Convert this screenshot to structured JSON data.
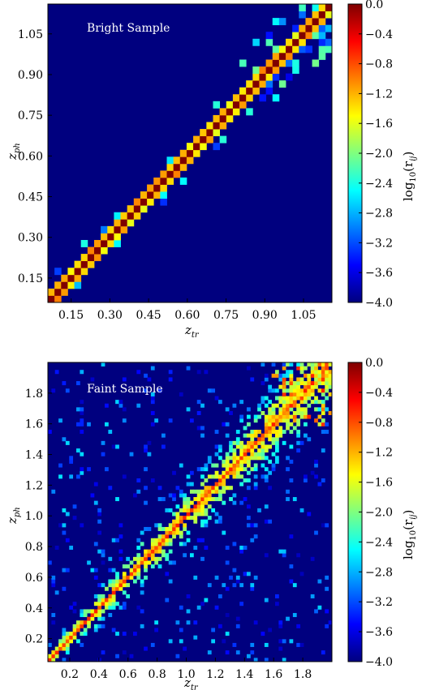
{
  "colormap": {
    "stops": [
      "#00007f",
      "#0000ff",
      "#007fff",
      "#00ffff",
      "#7fff7f",
      "#ffff00",
      "#ff7f00",
      "#ff0000",
      "#7f0000"
    ],
    "cbar_ticks": [
      "0.0",
      "−0.4",
      "−0.8",
      "−1.2",
      "−1.6",
      "−2.0",
      "−2.4",
      "−2.8",
      "−3.2",
      "−3.6",
      "−4.0"
    ],
    "cbar_label_main": "log",
    "cbar_label_sub": "10",
    "cbar_label_rest": "(r",
    "cbar_label_idx": "ij",
    "cbar_label_close": ")",
    "range": [
      -4.0,
      0.0
    ]
  },
  "chart_data": [
    {
      "type": "heatmap",
      "title": "Bright Sample",
      "xlabel_main": "z",
      "xlabel_sub": "tr",
      "ylabel_main": "z",
      "ylabel_sub": "ph",
      "xlim": [
        0.06,
        1.16
      ],
      "ylim": [
        0.06,
        1.16
      ],
      "bins": 43,
      "xticks": [
        "0.15",
        "0.30",
        "0.45",
        "0.60",
        "0.75",
        "0.90",
        "1.05"
      ],
      "yticks": [
        "0.15",
        "0.30",
        "0.45",
        "0.60",
        "0.75",
        "0.90",
        "1.05"
      ],
      "diagonal_value": 0.0,
      "near_diagonal_value": -1.3,
      "background_value": -4.0
    },
    {
      "type": "heatmap",
      "title": "Faint Sample",
      "xlabel_main": "z",
      "xlabel_sub": "tr",
      "ylabel_main": "z",
      "ylabel_sub": "ph",
      "xlim": [
        0.05,
        2.0
      ],
      "ylim": [
        0.05,
        2.0
      ],
      "bins": 80,
      "xticks": [
        "0.2",
        "0.4",
        "0.6",
        "0.8",
        "1.0",
        "1.2",
        "1.4",
        "1.6",
        "1.8"
      ],
      "yticks": [
        "0.2",
        "0.4",
        "0.6",
        "0.8",
        "1.0",
        "1.2",
        "1.4",
        "1.6",
        "1.8"
      ],
      "diagonal_value": -0.6,
      "spread_value": -1.6,
      "background_value": -4.0
    }
  ]
}
